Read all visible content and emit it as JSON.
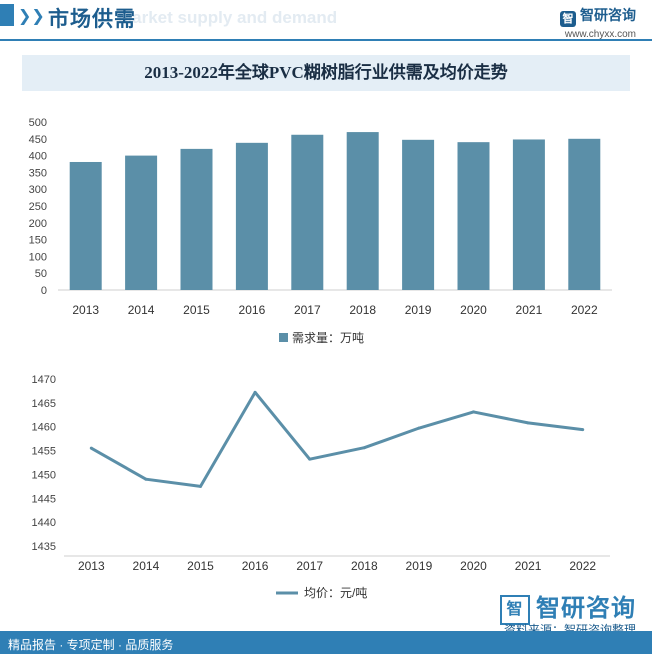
{
  "header": {
    "title": "市场供需",
    "subtitle": "Market supply and demand",
    "brand_name": "智研咨询",
    "brand_url": "www.chyxx.com"
  },
  "chart_title": "2013-2022年全球PVC糊树脂行业供需及均价走势",
  "chart_data": [
    {
      "type": "bar",
      "categories": [
        "2013",
        "2014",
        "2015",
        "2016",
        "2017",
        "2018",
        "2019",
        "2020",
        "2021",
        "2022"
      ],
      "series": [
        {
          "name": "需求量：万吨",
          "values": [
            381,
            400,
            420,
            438,
            462,
            470,
            447,
            440,
            448,
            450
          ]
        }
      ],
      "ylim": [
        0,
        500
      ],
      "yticks": [
        0,
        50,
        100,
        150,
        200,
        250,
        300,
        350,
        400,
        450,
        500
      ],
      "color": "#5b8fa8",
      "legend_position": "bottom"
    },
    {
      "type": "line",
      "categories": [
        "2013",
        "2014",
        "2015",
        "2016",
        "2017",
        "2018",
        "2019",
        "2020",
        "2021",
        "2022"
      ],
      "series": [
        {
          "name": "均价：元/吨",
          "values": [
            1455.5,
            1449.0,
            1447.5,
            1467.2,
            1453.2,
            1455.6,
            1459.7,
            1463.1,
            1460.8,
            1459.4
          ]
        }
      ],
      "ylim": [
        1435,
        1470
      ],
      "yticks": [
        1435,
        1440,
        1445,
        1450,
        1455,
        1460,
        1465,
        1470
      ],
      "color": "#5b8fa8",
      "legend_position": "bottom"
    }
  ],
  "footer": {
    "logo_text": "智研咨询",
    "source": "资料来源：智研咨询整理",
    "tagline": "精品报告 · 专项定制 · 品质服务"
  }
}
